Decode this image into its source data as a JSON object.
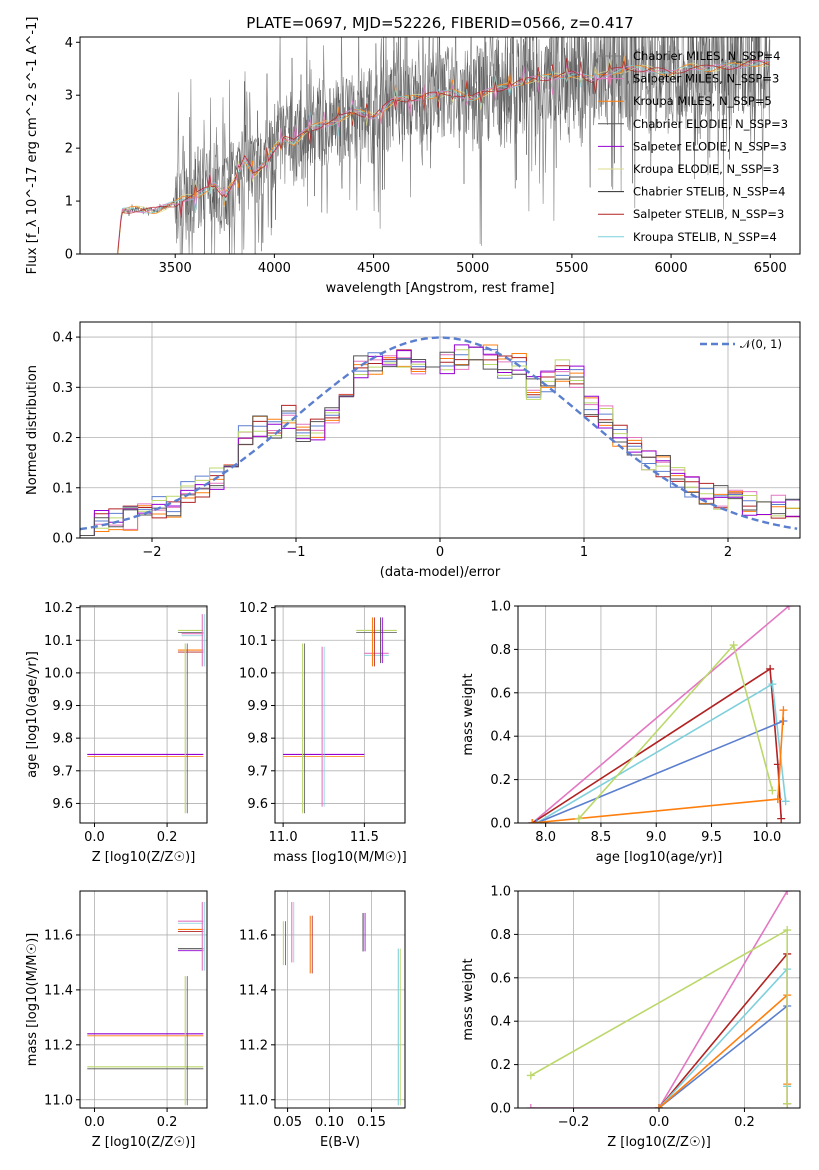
{
  "figure_title": "PLATE=0697, MJD=52226, FIBERID=0566, z=0.417",
  "colors": [
    "#7f7f7f",
    "#e377c2",
    "#ff7f0e",
    "#555555",
    "#9400d3",
    "#dbdb8d",
    "#2b2b2b",
    "#b22222",
    "#7fd0dc",
    "#5b7fcf",
    "#bcd86b",
    "#90e090"
  ],
  "chart_data": [
    {
      "id": "spectrum",
      "type": "line",
      "title": "PLATE=0697, MJD=52226, FIBERID=0566, z=0.417",
      "xlabel": "wavelength [Angstrom, rest frame]",
      "ylabel": "Flux [f_λ 10^-17 erg cm^-2 s^-1 A^-1]",
      "xlim": [
        3020,
        6650
      ],
      "ylim": [
        0,
        4.1
      ],
      "xticks": [
        "3500",
        "4000",
        "4500",
        "5000",
        "5500",
        "6000",
        "6500"
      ],
      "yticks": [
        "0",
        "1",
        "2",
        "3",
        "4"
      ],
      "grid": false,
      "legend_position": "top-right",
      "data_points": {
        "x": [
          3210,
          3230,
          3300,
          3400,
          3500,
          3540,
          3600,
          3650,
          3700,
          3750,
          3800,
          3850,
          3900,
          3950,
          4000,
          4050,
          4100,
          4150,
          4200,
          4300,
          4400,
          4500,
          4600,
          4700,
          4800,
          4900,
          5000,
          5100,
          5200,
          5300,
          5400,
          5500,
          5600,
          5700,
          5800,
          5900,
          6000,
          6100,
          6200,
          6300,
          6400,
          6500
        ],
        "y": [
          0.0,
          0.8,
          0.85,
          0.82,
          0.95,
          1.05,
          1.1,
          1.2,
          1.3,
          1.1,
          1.4,
          1.8,
          1.5,
          1.7,
          2.0,
          2.2,
          2.1,
          2.3,
          2.4,
          2.5,
          2.7,
          2.6,
          2.9,
          2.95,
          3.0,
          3.05,
          2.95,
          3.1,
          3.2,
          3.3,
          3.35,
          3.4,
          3.3,
          3.45,
          3.5,
          3.5,
          3.4,
          3.55,
          3.5,
          3.55,
          3.6,
          3.6
        ]
      },
      "series": [
        {
          "name": "Chabrier MILES, N_SSP=4"
        },
        {
          "name": "Salpeter MILES, N_SSP=3"
        },
        {
          "name": "Kroupa MILES, N_SSP=5"
        },
        {
          "name": "Chabrier ELODIE, N_SSP=3"
        },
        {
          "name": "Salpeter ELODIE, N_SSP=3"
        },
        {
          "name": "Kroupa ELODIE, N_SSP=3"
        },
        {
          "name": "Chabrier STELIB, N_SSP=4"
        },
        {
          "name": "Salpeter STELIB, N_SSP=3"
        },
        {
          "name": "Kroupa STELIB, N_SSP=4"
        }
      ]
    },
    {
      "id": "residuals",
      "type": "line",
      "xlabel": "(data-model)/error",
      "ylabel": "Normed distribution",
      "xlim": [
        -2.5,
        2.5
      ],
      "ylim": [
        0,
        0.43
      ],
      "xticks": [
        "−2",
        "−1",
        "0",
        "1",
        "2"
      ],
      "yticks": [
        "0.0",
        "0.1",
        "0.2",
        "0.3",
        "0.4"
      ],
      "grid": true,
      "legend": [
        "𝒩(0, 1)"
      ],
      "legend_position": "top-right",
      "bin_width": 0.1,
      "histogram_x": [
        -2.45,
        -2.35,
        -2.25,
        -2.15,
        -2.05,
        -1.95,
        -1.85,
        -1.75,
        -1.65,
        -1.55,
        -1.45,
        -1.35,
        -1.25,
        -1.15,
        -1.05,
        -0.95,
        -0.85,
        -0.75,
        -0.65,
        -0.55,
        -0.45,
        -0.35,
        -0.25,
        -0.15,
        -0.05,
        0.05,
        0.15,
        0.25,
        0.35,
        0.45,
        0.55,
        0.65,
        0.75,
        0.85,
        0.95,
        1.05,
        1.15,
        1.25,
        1.35,
        1.45,
        1.55,
        1.65,
        1.75,
        1.85,
        1.95,
        2.05,
        2.15,
        2.25,
        2.35,
        2.45
      ],
      "histogram_y": [
        0.03,
        0.03,
        0.035,
        0.04,
        0.05,
        0.06,
        0.06,
        0.09,
        0.1,
        0.12,
        0.16,
        0.2,
        0.22,
        0.22,
        0.24,
        0.21,
        0.22,
        0.25,
        0.3,
        0.34,
        0.35,
        0.36,
        0.36,
        0.34,
        0.35,
        0.35,
        0.36,
        0.37,
        0.36,
        0.34,
        0.35,
        0.3,
        0.31,
        0.33,
        0.32,
        0.26,
        0.24,
        0.2,
        0.18,
        0.16,
        0.14,
        0.12,
        0.1,
        0.09,
        0.08,
        0.08,
        0.07,
        0.06,
        0.06,
        0.06
      ]
    },
    {
      "id": "age_vs_Z",
      "type": "scatter",
      "xlabel": "Z [log10(Z/Z☉)]",
      "ylabel": "age [log10(age/yr)]",
      "xlim": [
        -0.04,
        0.31
      ],
      "ylim": [
        9.54,
        10.205
      ],
      "xticks": [
        "0.0",
        "0.2"
      ],
      "yticks": [
        "9.6",
        "9.7",
        "9.8",
        "9.9",
        "10.0",
        "10.1",
        "10.2"
      ],
      "grid": true,
      "hlines": [
        {
          "y": 9.75,
          "x0": -0.02,
          "x1": 0.3
        },
        {
          "y": 10.13,
          "x0": 0.23,
          "x1": 0.3
        },
        {
          "y": 10.12,
          "x0": 0.24,
          "x1": 0.3
        },
        {
          "y": 10.07,
          "x0": 0.23,
          "x1": 0.3
        }
      ],
      "vlines": [
        {
          "x": 0.25,
          "y0": 9.57,
          "y1": 10.09
        },
        {
          "x": 0.297,
          "y0": 10.02,
          "y1": 10.18
        }
      ]
    },
    {
      "id": "age_vs_mass",
      "type": "scatter",
      "xlabel": "mass [log10(M/M☉)]",
      "xlim": [
        10.95,
        11.75
      ],
      "ylim": [
        9.54,
        10.205
      ],
      "xticks": [
        "11.0",
        "11.5"
      ],
      "yticks": [
        "9.6",
        "9.7",
        "9.8",
        "9.9",
        "10.0",
        "10.1",
        "10.2"
      ],
      "grid": true,
      "hlines": [
        {
          "y": 9.75,
          "x0": 11.0,
          "x1": 11.5
        },
        {
          "y": 10.13,
          "x0": 11.45,
          "x1": 11.7
        },
        {
          "y": 10.06,
          "x0": 11.5,
          "x1": 11.65
        }
      ],
      "vlines": [
        {
          "x": 11.12,
          "y0": 9.57,
          "y1": 10.09
        },
        {
          "x": 11.24,
          "y0": 9.59,
          "y1": 10.08
        },
        {
          "x": 11.55,
          "y0": 10.02,
          "y1": 10.17
        },
        {
          "x": 11.6,
          "y0": 10.03,
          "y1": 10.17
        }
      ]
    },
    {
      "id": "massweight_vs_age",
      "type": "line",
      "xlabel": "age [log10(age/yr)]",
      "ylabel": "mass weight",
      "xlim": [
        7.75,
        10.3
      ],
      "ylim": [
        0,
        1.0
      ],
      "xticks": [
        "8.0",
        "8.5",
        "9.0",
        "9.5",
        "10.0"
      ],
      "yticks": [
        "0.0",
        "0.2",
        "0.4",
        "0.6",
        "0.8",
        "1.0"
      ],
      "grid": true,
      "series": [
        {
          "x": [
            7.88,
            10.2
          ],
          "y": [
            0.0,
            1.0
          ]
        },
        {
          "x": [
            7.88,
            10.03,
            10.1,
            10.13
          ],
          "y": [
            0.0,
            0.71,
            0.27,
            0.02
          ]
        },
        {
          "x": [
            7.92,
            10.05,
            10.17
          ],
          "y": [
            0.0,
            0.64,
            0.1
          ]
        },
        {
          "x": [
            7.92,
            10.15
          ],
          "y": [
            0.0,
            0.47
          ]
        },
        {
          "x": [
            7.88,
            10.1,
            10.15,
            10.1
          ],
          "y": [
            0.0,
            0.11,
            0.52,
            0.11
          ]
        },
        {
          "x": [
            8.3,
            9.7,
            10.05
          ],
          "y": [
            0.02,
            0.82,
            0.15
          ]
        }
      ]
    },
    {
      "id": "mass_vs_Z",
      "type": "scatter",
      "xlabel": "Z [log10(Z/Z☉)]",
      "ylabel": "mass [log10(M/M☉)]",
      "xlim": [
        -0.04,
        0.31
      ],
      "ylim": [
        10.97,
        11.76
      ],
      "xticks": [
        "0.0",
        "0.2"
      ],
      "yticks": [
        "11.0",
        "11.2",
        "11.4",
        "11.6"
      ],
      "grid": true,
      "hlines": [
        {
          "y": 11.24,
          "x0": -0.02,
          "x1": 0.3
        },
        {
          "y": 11.12,
          "x0": -0.02,
          "x1": 0.3
        },
        {
          "y": 11.65,
          "x0": 0.23,
          "x1": 0.3
        },
        {
          "y": 11.62,
          "x0": 0.23,
          "x1": 0.3
        },
        {
          "y": 11.55,
          "x0": 0.23,
          "x1": 0.3
        }
      ],
      "vlines": [
        {
          "x": 0.25,
          "y0": 10.98,
          "y1": 11.45
        },
        {
          "x": 0.297,
          "y0": 11.47,
          "y1": 11.72
        }
      ]
    },
    {
      "id": "mass_vs_ebv",
      "type": "scatter",
      "xlabel": "E(B-V)",
      "xlim": [
        0.035,
        0.19
      ],
      "ylim": [
        10.97,
        11.76
      ],
      "xticks": [
        "0.05",
        "0.10",
        "0.15"
      ],
      "yticks": [
        "11.0",
        "11.2",
        "11.4",
        "11.6"
      ],
      "grid": true,
      "vlines": [
        {
          "x": 0.045,
          "y0": 11.49,
          "y1": 11.65
        },
        {
          "x": 0.055,
          "y0": 11.5,
          "y1": 11.72
        },
        {
          "x": 0.077,
          "y0": 11.46,
          "y1": 11.67
        },
        {
          "x": 0.14,
          "y0": 11.54,
          "y1": 11.68
        },
        {
          "x": 0.182,
          "y0": 10.98,
          "y1": 11.55
        }
      ]
    },
    {
      "id": "massweight_vs_Z",
      "type": "line",
      "xlabel": "Z [log10(Z/Z☉)]",
      "ylabel": "mass weight",
      "xlim": [
        -0.33,
        0.33
      ],
      "ylim": [
        0,
        1.0
      ],
      "xticks": [
        "−0.2",
        "0.0",
        "0.2"
      ],
      "yticks": [
        "0.0",
        "0.2",
        "0.4",
        "0.6",
        "0.8",
        "1.0"
      ],
      "grid": true,
      "series": [
        {
          "x": [
            -0.3,
            0.0,
            0.3
          ],
          "y": [
            0.0,
            0.0,
            1.0
          ]
        },
        {
          "x": [
            0.0,
            0.3,
            0.3
          ],
          "y": [
            0.0,
            0.71,
            0.02
          ]
        },
        {
          "x": [
            0.0,
            0.3,
            0.3
          ],
          "y": [
            0.0,
            0.64,
            0.1
          ]
        },
        {
          "x": [
            0.0,
            0.3
          ],
          "y": [
            0.0,
            0.47
          ]
        },
        {
          "x": [
            0.0,
            0.3,
            0.3
          ],
          "y": [
            0.0,
            0.52,
            0.11
          ]
        },
        {
          "x": [
            -0.3,
            0.3,
            0.3
          ],
          "y": [
            0.15,
            0.82,
            0.02
          ]
        }
      ]
    }
  ]
}
